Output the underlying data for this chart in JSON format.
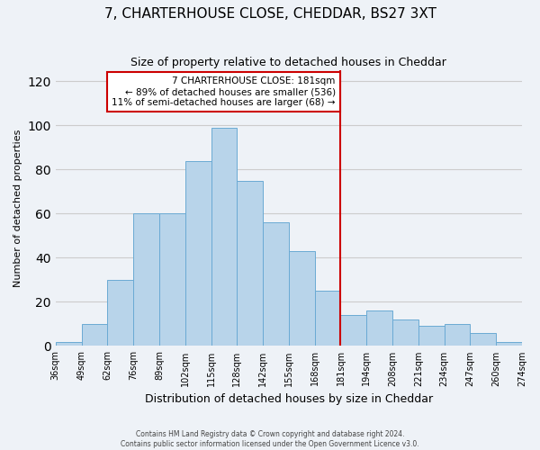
{
  "title": "7, CHARTERHOUSE CLOSE, CHEDDAR, BS27 3XT",
  "subtitle": "Size of property relative to detached houses in Cheddar",
  "xlabel": "Distribution of detached houses by size in Cheddar",
  "ylabel": "Number of detached properties",
  "bar_values": [
    2,
    10,
    30,
    60,
    60,
    84,
    99,
    75,
    56,
    43,
    25,
    14,
    16,
    12,
    9,
    10,
    6,
    2
  ],
  "bin_labels": [
    "36sqm",
    "49sqm",
    "62sqm",
    "76sqm",
    "89sqm",
    "102sqm",
    "115sqm",
    "128sqm",
    "142sqm",
    "155sqm",
    "168sqm",
    "181sqm",
    "194sqm",
    "208sqm",
    "221sqm",
    "234sqm",
    "247sqm",
    "260sqm",
    "274sqm"
  ],
  "bar_color": "#b8d4ea",
  "bar_edge_color": "#6aaad4",
  "vline_x_index": 11,
  "vline_color": "#cc0000",
  "ylim": [
    0,
    125
  ],
  "yticks": [
    0,
    20,
    40,
    60,
    80,
    100,
    120
  ],
  "annotation_title": "7 CHARTERHOUSE CLOSE: 181sqm",
  "annotation_line1": "← 89% of detached houses are smaller (536)",
  "annotation_line2": "11% of semi-detached houses are larger (68) →",
  "annotation_box_color": "#ffffff",
  "annotation_box_edge": "#cc0000",
  "grid_color": "#cccccc",
  "background_color": "#eef2f7",
  "footer_line1": "Contains HM Land Registry data © Crown copyright and database right 2024.",
  "footer_line2": "Contains public sector information licensed under the Open Government Licence v3.0."
}
